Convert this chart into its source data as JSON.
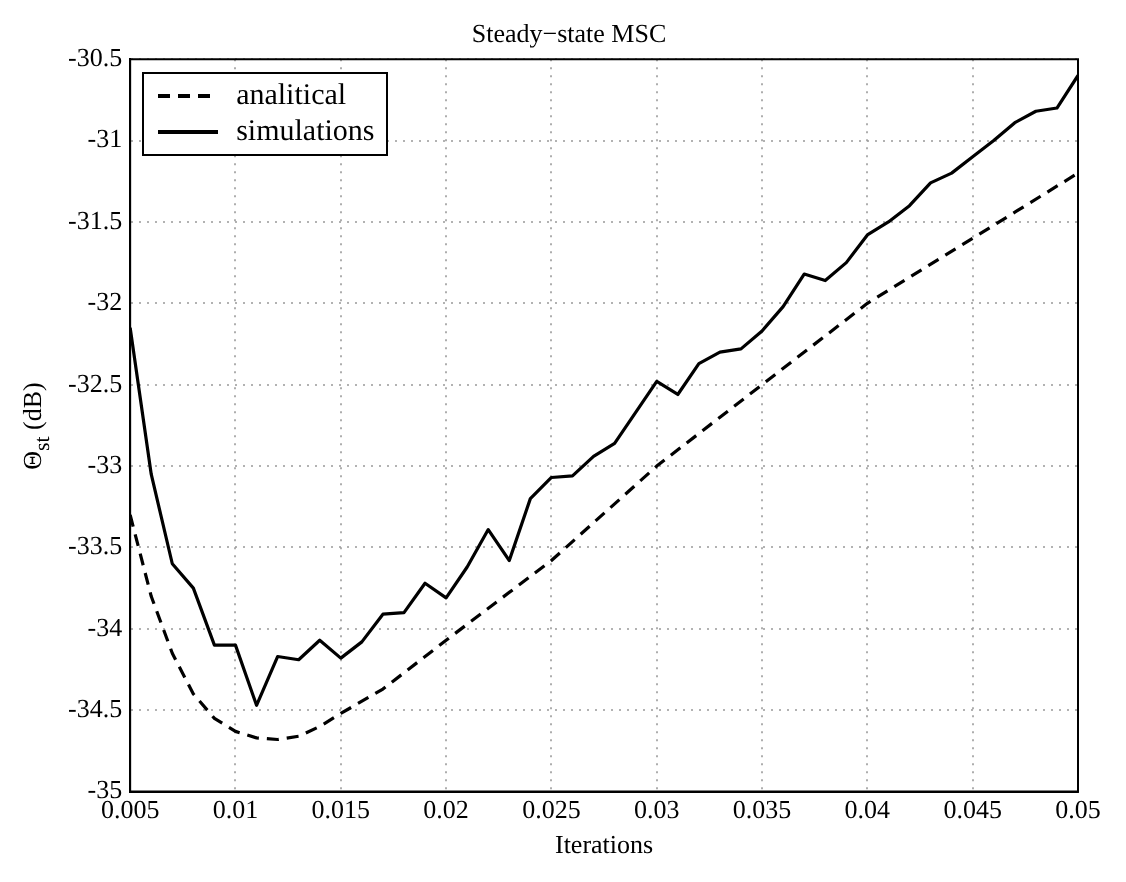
{
  "chart_data": {
    "type": "line",
    "title": "Steady−state MSC",
    "xlabel": "Iterations",
    "ylabel": "Θ$_{st}$ (dB)",
    "xlim": [
      0.005,
      0.05
    ],
    "xticks": [
      0.005,
      0.01,
      0.015,
      0.02,
      0.025,
      0.03,
      0.035,
      0.04,
      0.045,
      0.05
    ],
    "ylim": [
      -35,
      -30.5
    ],
    "yticks": [
      -35,
      -34.5,
      -34,
      -33.5,
      -33,
      -32.5,
      -32,
      -31.5,
      -31,
      -30.5
    ],
    "grid": true,
    "legend": "top left",
    "marker": "none",
    "series": [
      {
        "name": "analitical",
        "color": "#000000",
        "line_style": "dashed",
        "x": [
          0.005,
          0.006,
          0.007,
          0.008,
          0.009,
          0.01,
          0.011,
          0.012,
          0.013,
          0.014,
          0.015,
          0.017,
          0.02,
          0.025,
          0.03,
          0.035,
          0.04,
          0.045,
          0.05
        ],
        "values": [
          -33.3,
          -33.8,
          -34.15,
          -34.4,
          -34.55,
          -34.63,
          -34.67,
          -34.68,
          -34.66,
          -34.6,
          -34.52,
          -34.37,
          -34.07,
          -33.58,
          -33.0,
          -32.5,
          -32.0,
          -31.6,
          -31.2
        ]
      },
      {
        "name": "simulations",
        "color": "#000000",
        "line_style": "solid",
        "x": [
          0.005,
          0.006,
          0.007,
          0.008,
          0.009,
          0.01,
          0.011,
          0.012,
          0.013,
          0.014,
          0.015,
          0.016,
          0.017,
          0.018,
          0.019,
          0.02,
          0.021,
          0.022,
          0.023,
          0.024,
          0.025,
          0.026,
          0.027,
          0.028,
          0.029,
          0.03,
          0.031,
          0.032,
          0.033,
          0.034,
          0.035,
          0.036,
          0.037,
          0.038,
          0.039,
          0.04,
          0.041,
          0.042,
          0.043,
          0.044,
          0.045,
          0.046,
          0.047,
          0.048,
          0.049,
          0.05
        ],
        "values": [
          -32.15,
          -33.05,
          -33.6,
          -33.75,
          -34.1,
          -34.1,
          -34.47,
          -34.17,
          -34.19,
          -34.07,
          -34.18,
          -34.08,
          -33.91,
          -33.9,
          -33.72,
          -33.81,
          -33.62,
          -33.39,
          -33.58,
          -33.2,
          -33.07,
          -33.06,
          -32.94,
          -32.86,
          -32.67,
          -32.48,
          -32.56,
          -32.37,
          -32.3,
          -32.28,
          -32.17,
          -32.02,
          -31.82,
          -31.86,
          -31.75,
          -31.58,
          -31.5,
          -31.4,
          -31.26,
          -31.2,
          -31.1,
          -31.0,
          -30.89,
          -30.82,
          -30.8,
          -30.6
        ]
      }
    ]
  }
}
